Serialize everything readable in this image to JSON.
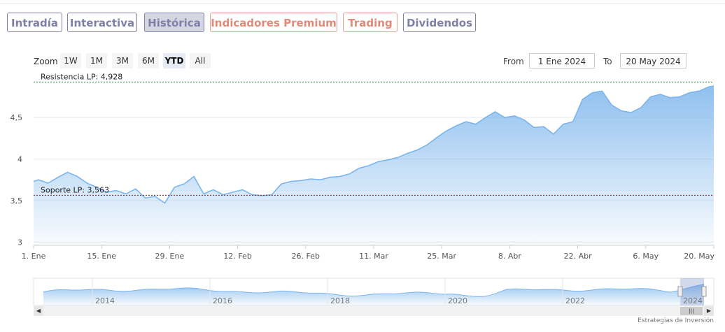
{
  "tabs": [
    {
      "label": "Intradía",
      "style": "normal"
    },
    {
      "label": "Interactiva",
      "style": "normal"
    },
    {
      "label": "Histórica",
      "style": "active"
    },
    {
      "label": "Indicadores Premium",
      "style": "red"
    },
    {
      "label": "Trading",
      "style": "red"
    },
    {
      "label": "Dividendos",
      "style": "normal"
    }
  ],
  "zoom": {
    "label": "Zoom",
    "buttons": [
      "1W",
      "1M",
      "3M",
      "6M",
      "YTD",
      "All"
    ],
    "active": "YTD"
  },
  "range": {
    "from_label": "From",
    "from_value": "1 Ene 2024",
    "to_label": "To",
    "to_value": "20 May 2024"
  },
  "credit": "Estrategias de Inversión",
  "chart_data": {
    "type": "area",
    "x_tick_labels": [
      "1. Ene",
      "15. Ene",
      "29. Ene",
      "12. Feb",
      "26. Feb",
      "11. Mar",
      "25. Mar",
      "8. Abr",
      "22. Abr",
      "6. May",
      "20. May"
    ],
    "y_tick_labels": [
      "3",
      "3,5",
      "4",
      "4,5"
    ],
    "y_ticks": [
      3,
      3.5,
      4,
      4.5
    ],
    "ylim": [
      2.96,
      4.99
    ],
    "x_range_days": [
      0,
      140
    ],
    "x": [
      0,
      1,
      3,
      5,
      7,
      9,
      11,
      13,
      15,
      17,
      19,
      21,
      23,
      25,
      27,
      29,
      31,
      33,
      35,
      37,
      39,
      41,
      43,
      45,
      47,
      49,
      51,
      53,
      55,
      57,
      59,
      61,
      63,
      65,
      67,
      69,
      71,
      73,
      75,
      77,
      79,
      81,
      83,
      85,
      87,
      89,
      91,
      93,
      95,
      97,
      99,
      101,
      103,
      105,
      107,
      109,
      111,
      113,
      115,
      117,
      119,
      121,
      123,
      125,
      127,
      129,
      131,
      133,
      135,
      137,
      139,
      140
    ],
    "values": [
      3.73,
      3.75,
      3.71,
      3.78,
      3.84,
      3.79,
      3.71,
      3.66,
      3.6,
      3.62,
      3.58,
      3.64,
      3.53,
      3.55,
      3.47,
      3.66,
      3.7,
      3.79,
      3.58,
      3.63,
      3.57,
      3.6,
      3.63,
      3.57,
      3.56,
      3.57,
      3.7,
      3.73,
      3.74,
      3.76,
      3.75,
      3.78,
      3.79,
      3.82,
      3.89,
      3.92,
      3.97,
      3.99,
      4.02,
      4.07,
      4.11,
      4.17,
      4.26,
      4.34,
      4.4,
      4.45,
      4.42,
      4.5,
      4.57,
      4.5,
      4.52,
      4.47,
      4.38,
      4.39,
      4.3,
      4.42,
      4.45,
      4.72,
      4.8,
      4.82,
      4.65,
      4.58,
      4.56,
      4.62,
      4.75,
      4.78,
      4.74,
      4.75,
      4.8,
      4.82,
      4.87,
      4.88
    ],
    "annotations": [
      {
        "label": "Resistencia LP: 4,928",
        "value": 4.928,
        "color": "#2e7d32"
      },
      {
        "label": "Soporte LP: 3,563",
        "value": 3.563,
        "color": "#8b1a1a"
      }
    ],
    "navigator": {
      "year_labels": [
        "2014",
        "2016",
        "2018",
        "2020",
        "2022",
        "2024"
      ]
    },
    "series_color": "#7cb5ec",
    "grid": true
  }
}
